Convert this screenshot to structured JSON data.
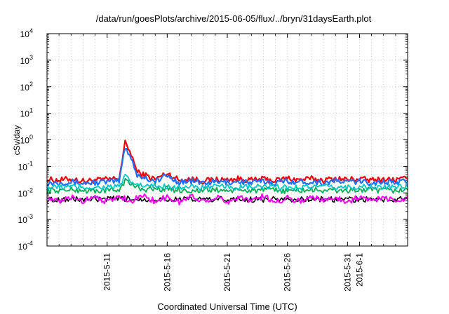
{
  "chart_data": {
    "type": "line",
    "title": "/data/run/goesPlots/archive/2015-06-05/flux/../bryn/31daysEarth.plot",
    "xlabel": "Coordinated Universal Time (UTC)",
    "ylabel": "cSv/day",
    "yscale": "log",
    "ylim": [
      0.0001,
      10000
    ],
    "xlim": [
      "2015-05-06",
      "2015-06-05"
    ],
    "grid": true,
    "y_ticks": [
      {
        "value": 0.0001,
        "base": "10",
        "exp": "-4"
      },
      {
        "value": 0.001,
        "base": "10",
        "exp": "-3"
      },
      {
        "value": 0.01,
        "base": "10",
        "exp": "-2"
      },
      {
        "value": 0.1,
        "base": "10",
        "exp": "-1"
      },
      {
        "value": 1,
        "base": "10",
        "exp": "0"
      },
      {
        "value": 10,
        "base": "10",
        "exp": "1"
      },
      {
        "value": 100,
        "base": "10",
        "exp": "2"
      },
      {
        "value": 1000,
        "base": "10",
        "exp": "3"
      },
      {
        "value": 10000,
        "base": "10",
        "exp": "4"
      }
    ],
    "x_ticks": [
      {
        "label": "2015-5-11",
        "date": "2015-05-11"
      },
      {
        "label": "2015-5-16",
        "date": "2015-05-16"
      },
      {
        "label": "2015-5-21",
        "date": "2015-05-21"
      },
      {
        "label": "2015-5-26",
        "date": "2015-05-26"
      },
      {
        "label": "2015-5-31",
        "date": "2015-05-31"
      },
      {
        "label": "2015-6-1",
        "date": "2015-06-01"
      }
    ],
    "x_minor_ticks": [
      "2015-05-07",
      "2015-05-08",
      "2015-05-09",
      "2015-05-10",
      "2015-05-12",
      "2015-05-13",
      "2015-05-14",
      "2015-05-15",
      "2015-05-17",
      "2015-05-18",
      "2015-05-19",
      "2015-05-20",
      "2015-05-22",
      "2015-05-23",
      "2015-05-24",
      "2015-05-25",
      "2015-05-27",
      "2015-05-28",
      "2015-05-29",
      "2015-05-30",
      "2015-06-02",
      "2015-06-03",
      "2015-06-04"
    ],
    "series": [
      {
        "color": "#ff0000",
        "width": 2.2,
        "x": [
          "2015-05-06",
          "2015-05-07",
          "2015-05-08",
          "2015-05-09",
          "2015-05-10",
          "2015-05-11",
          "2015-05-12",
          "2015-05-12T12:00",
          "2015-05-13",
          "2015-05-13T12:00",
          "2015-05-14",
          "2015-05-15",
          "2015-05-16",
          "2015-05-17",
          "2015-05-18",
          "2015-05-19",
          "2015-05-20",
          "2015-05-21",
          "2015-05-22",
          "2015-05-23",
          "2015-05-24",
          "2015-05-25",
          "2015-05-26",
          "2015-05-27",
          "2015-05-28",
          "2015-05-29",
          "2015-05-30",
          "2015-05-31",
          "2015-06-01",
          "2015-06-02",
          "2015-06-03",
          "2015-06-04",
          "2015-06-05"
        ],
        "y": [
          0.032,
          0.03,
          0.034,
          0.028,
          0.03,
          0.032,
          0.036,
          0.75,
          0.3,
          0.06,
          0.05,
          0.033,
          0.055,
          0.03,
          0.035,
          0.028,
          0.032,
          0.031,
          0.034,
          0.03,
          0.033,
          0.029,
          0.036,
          0.031,
          0.034,
          0.03,
          0.035,
          0.032,
          0.034,
          0.03,
          0.033,
          0.031,
          0.035
        ]
      },
      {
        "color": "#1f6fff",
        "width": 2.2,
        "x": [
          "2015-05-06",
          "2015-05-07",
          "2015-05-08",
          "2015-05-09",
          "2015-05-10",
          "2015-05-11",
          "2015-05-12",
          "2015-05-12T12:00",
          "2015-05-13",
          "2015-05-13T12:00",
          "2015-05-14",
          "2015-05-15",
          "2015-05-16",
          "2015-05-17",
          "2015-05-18",
          "2015-05-19",
          "2015-05-20",
          "2015-05-21",
          "2015-05-22",
          "2015-05-23",
          "2015-05-24",
          "2015-05-25",
          "2015-05-26",
          "2015-05-27",
          "2015-05-28",
          "2015-05-29",
          "2015-05-30",
          "2015-05-31",
          "2015-06-01",
          "2015-06-02",
          "2015-06-03",
          "2015-06-04",
          "2015-06-05"
        ],
        "y": [
          0.024,
          0.025,
          0.026,
          0.023,
          0.025,
          0.026,
          0.028,
          0.55,
          0.22,
          0.045,
          0.04,
          0.027,
          0.045,
          0.025,
          0.028,
          0.024,
          0.026,
          0.025,
          0.027,
          0.024,
          0.027,
          0.024,
          0.029,
          0.025,
          0.027,
          0.024,
          0.028,
          0.026,
          0.027,
          0.024,
          0.026,
          0.025,
          0.027
        ]
      },
      {
        "color": "#00b050",
        "width": 1.8,
        "x": [
          "2015-05-06",
          "2015-05-08",
          "2015-05-10",
          "2015-05-12",
          "2015-05-12T12:00",
          "2015-05-13",
          "2015-05-14",
          "2015-05-16",
          "2015-05-18",
          "2015-05-20",
          "2015-05-22",
          "2015-05-24",
          "2015-05-26",
          "2015-05-28",
          "2015-05-30",
          "2015-06-01",
          "2015-06-03",
          "2015-06-05"
        ],
        "y": [
          0.012,
          0.013,
          0.012,
          0.013,
          0.03,
          0.02,
          0.014,
          0.014,
          0.012,
          0.013,
          0.012,
          0.013,
          0.012,
          0.013,
          0.012,
          0.013,
          0.012,
          0.013
        ]
      },
      {
        "color": "#00c8c8",
        "width": 1.8,
        "x": [
          "2015-05-06",
          "2015-05-08",
          "2015-05-10",
          "2015-05-12",
          "2015-05-12T12:00",
          "2015-05-13",
          "2015-05-14",
          "2015-05-16",
          "2015-05-18",
          "2015-05-20",
          "2015-05-22",
          "2015-05-24",
          "2015-05-26",
          "2015-05-28",
          "2015-05-30",
          "2015-06-01",
          "2015-06-03",
          "2015-06-05"
        ],
        "y": [
          0.016,
          0.017,
          0.016,
          0.017,
          0.04,
          0.025,
          0.018,
          0.018,
          0.016,
          0.017,
          0.016,
          0.017,
          0.016,
          0.017,
          0.016,
          0.017,
          0.016,
          0.017
        ]
      },
      {
        "color": "#000000",
        "width": 1.6,
        "x": [
          "2015-05-06",
          "2015-05-08",
          "2015-05-10",
          "2015-05-12",
          "2015-05-14",
          "2015-05-16",
          "2015-05-18",
          "2015-05-20",
          "2015-05-22",
          "2015-05-24",
          "2015-05-26",
          "2015-05-28",
          "2015-05-30",
          "2015-06-01",
          "2015-06-03",
          "2015-06-05"
        ],
        "y": [
          0.0055,
          0.0058,
          0.0056,
          0.006,
          0.0058,
          0.0059,
          0.0056,
          0.0058,
          0.0056,
          0.0057,
          0.0056,
          0.0058,
          0.0056,
          0.0057,
          0.0056,
          0.0058
        ]
      },
      {
        "color": "#ff00ff",
        "width": 2.0,
        "x": [
          "2015-05-06",
          "2015-05-07",
          "2015-05-08",
          "2015-05-09",
          "2015-05-10",
          "2015-05-11",
          "2015-05-12",
          "2015-05-13",
          "2015-05-14",
          "2015-05-15",
          "2015-05-16",
          "2015-05-17",
          "2015-05-18",
          "2015-05-19",
          "2015-05-20",
          "2015-05-21",
          "2015-05-22",
          "2015-05-23",
          "2015-05-24",
          "2015-05-25",
          "2015-05-26",
          "2015-05-27",
          "2015-05-28",
          "2015-05-29",
          "2015-05-30",
          "2015-05-31",
          "2015-06-01",
          "2015-06-02",
          "2015-06-03",
          "2015-06-04",
          "2015-06-05"
        ],
        "y": [
          0.006,
          0.0045,
          0.007,
          0.005,
          0.008,
          0.0045,
          0.0075,
          0.005,
          0.008,
          0.0048,
          0.007,
          0.0045,
          0.0075,
          0.005,
          0.007,
          0.0046,
          0.0072,
          0.005,
          0.0075,
          0.0045,
          0.0068,
          0.0048,
          0.0074,
          0.005,
          0.007,
          0.0046,
          0.0072,
          0.0048,
          0.0076,
          0.0045,
          0.007
        ]
      }
    ]
  }
}
